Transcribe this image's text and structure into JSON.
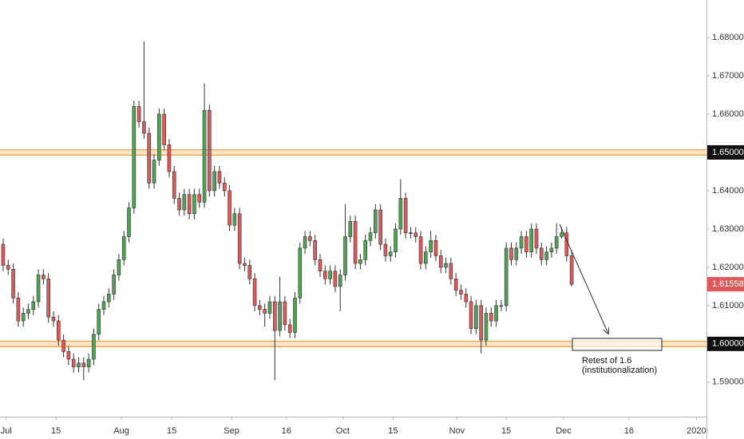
{
  "chart_data": {
    "type": "candlestick",
    "up_color": "#53a157",
    "down_color": "#e0595a",
    "level_color": "#f0a548",
    "grid": false,
    "xlim": [
      -0.63,
      139.8
    ],
    "ylim": [
      1.581,
      1.6898
    ],
    "xticks": [
      {
        "value": 0.6,
        "label": "Jul"
      },
      {
        "value": 10.5,
        "label": "15"
      },
      {
        "value": 23.5,
        "label": "Aug"
      },
      {
        "value": 33.5,
        "label": "15"
      },
      {
        "value": 45.4,
        "label": "Sep"
      },
      {
        "value": 56.3,
        "label": "16"
      },
      {
        "value": 67.5,
        "label": "Oct"
      },
      {
        "value": 77.5,
        "label": "15"
      },
      {
        "value": 90.2,
        "label": "Nov"
      },
      {
        "value": 100,
        "label": "15"
      },
      {
        "value": 111.4,
        "label": "Dec"
      },
      {
        "value": 124.4,
        "label": "16"
      },
      {
        "value": 137.8,
        "label": "2020"
      }
    ],
    "yticks": [
      {
        "value": 1.68,
        "label": "1.68000"
      },
      {
        "value": 1.67,
        "label": "1.67000"
      },
      {
        "value": 1.66,
        "label": "1.66000"
      },
      {
        "value": 1.64,
        "label": "1.64000"
      },
      {
        "value": 1.63,
        "label": "1.63000"
      },
      {
        "value": 1.62,
        "label": "1.62000"
      },
      {
        "value": 1.61,
        "label": "1.61000"
      },
      {
        "value": 1.59,
        "label": "1.59000"
      }
    ],
    "levels": [
      {
        "value": 1.65,
        "label": "1.65000",
        "zone": [
          1.6493,
          1.6507
        ]
      },
      {
        "value": 1.6,
        "label": "1.60000",
        "zone": [
          1.5993,
          1.6007
        ]
      }
    ],
    "annotation": [
      "Retest of 1.6",
      "(institutionalization)"
    ],
    "open": [
      1.626,
      1.6205,
      1.6195,
      1.612,
      1.606,
      1.608,
      1.609,
      1.611,
      1.618,
      1.617,
      1.607,
      1.606,
      1.601,
      1.598,
      1.596,
      1.594,
      1.595,
      1.594,
      1.596,
      1.6025,
      1.609,
      1.611,
      1.613,
      1.618,
      1.622,
      1.628,
      1.6355,
      1.662,
      1.658,
      1.655,
      1.642,
      1.648,
      1.66,
      1.652,
      1.645,
      1.638,
      1.635,
      1.639,
      1.634,
      1.639,
      1.637,
      1.661,
      1.64,
      1.645,
      1.642,
      1.64,
      1.631,
      1.634,
      1.621,
      1.6205,
      1.617,
      1.61,
      1.609,
      1.608,
      1.611,
      1.6035,
      1.611,
      1.605,
      1.603,
      1.612,
      1.625,
      1.628,
      1.627,
      1.622,
      1.619,
      1.617,
      1.619,
      1.615,
      1.618,
      1.628,
      1.632,
      1.621,
      1.622,
      1.627,
      1.629,
      1.635,
      1.626,
      1.623,
      1.624,
      1.63,
      1.638,
      1.629,
      1.629,
      1.628,
      1.621,
      1.624,
      1.627,
      1.623,
      1.62,
      1.621,
      1.617,
      1.614,
      1.613,
      1.611,
      1.604,
      1.61,
      1.601,
      1.608,
      1.606,
      1.61,
      1.61,
      1.625,
      1.622,
      1.625,
      1.628,
      1.624,
      1.63,
      1.625,
      1.622,
      1.624,
      1.625,
      1.628,
      1.629,
      1.623
    ],
    "high": [
      1.6275,
      1.622,
      1.621,
      1.6135,
      1.6095,
      1.6105,
      1.6125,
      1.6195,
      1.6195,
      1.6185,
      1.6085,
      1.6075,
      1.6025,
      1.5995,
      1.5975,
      1.5965,
      1.5965,
      1.5975,
      1.604,
      1.6105,
      1.6125,
      1.6145,
      1.6195,
      1.6235,
      1.6295,
      1.637,
      1.6635,
      1.6635,
      1.679,
      1.6565,
      1.6495,
      1.6615,
      1.6615,
      1.6535,
      1.6465,
      1.6395,
      1.6405,
      1.6405,
      1.6405,
      1.6405,
      1.668,
      1.6625,
      1.6465,
      1.6465,
      1.6435,
      1.6415,
      1.6355,
      1.6355,
      1.6225,
      1.622,
      1.6185,
      1.6115,
      1.6105,
      1.6125,
      1.6125,
      1.6175,
      1.6125,
      1.6065,
      1.6135,
      1.6265,
      1.6295,
      1.6295,
      1.6285,
      1.6235,
      1.6205,
      1.6205,
      1.6205,
      1.6195,
      1.6365,
      1.6335,
      1.6335,
      1.6235,
      1.6285,
      1.6305,
      1.6365,
      1.6365,
      1.6275,
      1.6255,
      1.6315,
      1.643,
      1.6395,
      1.6305,
      1.6305,
      1.6295,
      1.6255,
      1.6295,
      1.6285,
      1.6245,
      1.6225,
      1.6225,
      1.6185,
      1.6155,
      1.6145,
      1.6125,
      1.6115,
      1.6115,
      1.6095,
      1.6095,
      1.6115,
      1.6115,
      1.6265,
      1.6265,
      1.6265,
      1.6295,
      1.6295,
      1.6315,
      1.6315,
      1.6265,
      1.6255,
      1.6265,
      1.6315,
      1.6305,
      1.6305,
      1.6245
    ],
    "low": [
      1.619,
      1.618,
      1.6105,
      1.6045,
      1.6045,
      1.6065,
      1.6075,
      1.6095,
      1.6155,
      1.6055,
      1.6045,
      1.5995,
      1.5965,
      1.5945,
      1.5925,
      1.5925,
      1.5905,
      1.5925,
      1.5945,
      1.601,
      1.6075,
      1.6095,
      1.6115,
      1.6165,
      1.6205,
      1.6265,
      1.634,
      1.6565,
      1.6535,
      1.6405,
      1.6405,
      1.6465,
      1.6505,
      1.6435,
      1.6365,
      1.6335,
      1.6335,
      1.6325,
      1.6325,
      1.6355,
      1.6355,
      1.6385,
      1.6385,
      1.6405,
      1.6385,
      1.6295,
      1.6295,
      1.6195,
      1.619,
      1.6155,
      1.6085,
      1.6075,
      1.6045,
      1.6065,
      1.5905,
      1.602,
      1.6035,
      1.6015,
      1.6015,
      1.6105,
      1.6235,
      1.6255,
      1.6205,
      1.6175,
      1.6155,
      1.6155,
      1.6135,
      1.6085,
      1.6165,
      1.6265,
      1.6195,
      1.6195,
      1.6205,
      1.6255,
      1.6275,
      1.6245,
      1.6215,
      1.6215,
      1.6225,
      1.6285,
      1.6275,
      1.6275,
      1.6265,
      1.6195,
      1.6195,
      1.6225,
      1.6215,
      1.6185,
      1.6185,
      1.6155,
      1.6125,
      1.6115,
      1.6095,
      1.6025,
      1.6025,
      1.5975,
      1.5995,
      1.6045,
      1.6045,
      1.6085,
      1.6085,
      1.6205,
      1.6205,
      1.6235,
      1.6225,
      1.6225,
      1.6235,
      1.6205,
      1.6205,
      1.6225,
      1.6235,
      1.6275,
      1.6215,
      1.615
    ],
    "close": [
      1.6205,
      1.6195,
      1.612,
      1.606,
      1.608,
      1.609,
      1.611,
      1.618,
      1.617,
      1.607,
      1.606,
      1.601,
      1.598,
      1.596,
      1.594,
      1.595,
      1.594,
      1.596,
      1.6025,
      1.609,
      1.611,
      1.613,
      1.618,
      1.622,
      1.628,
      1.6355,
      1.662,
      1.658,
      1.655,
      1.642,
      1.648,
      1.66,
      1.652,
      1.645,
      1.638,
      1.635,
      1.639,
      1.634,
      1.639,
      1.637,
      1.661,
      1.64,
      1.645,
      1.642,
      1.64,
      1.631,
      1.634,
      1.621,
      1.6205,
      1.617,
      1.61,
      1.609,
      1.608,
      1.611,
      1.6035,
      1.611,
      1.605,
      1.603,
      1.612,
      1.625,
      1.628,
      1.627,
      1.622,
      1.619,
      1.617,
      1.619,
      1.615,
      1.618,
      1.628,
      1.632,
      1.621,
      1.622,
      1.627,
      1.629,
      1.635,
      1.626,
      1.623,
      1.624,
      1.63,
      1.638,
      1.629,
      1.629,
      1.628,
      1.621,
      1.624,
      1.627,
      1.623,
      1.62,
      1.621,
      1.617,
      1.614,
      1.613,
      1.611,
      1.604,
      1.61,
      1.601,
      1.608,
      1.606,
      1.61,
      1.61,
      1.625,
      1.622,
      1.625,
      1.628,
      1.624,
      1.63,
      1.625,
      1.622,
      1.624,
      1.625,
      1.628,
      1.629,
      1.623,
      1.61558
    ]
  }
}
